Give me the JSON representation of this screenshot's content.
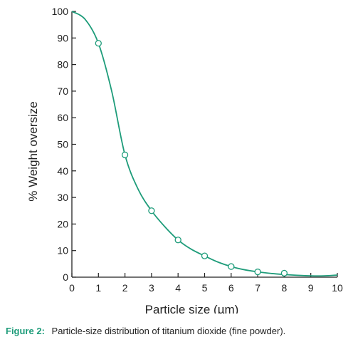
{
  "caption": {
    "label": "Figure 2:",
    "text": "Particle-size distribution of titanium dioxide (fine powder)."
  },
  "colors": {
    "curve": "#1e9c7a",
    "axis": "#222222",
    "caption_label": "#1e9c7a"
  },
  "chart_data": {
    "type": "line",
    "title": "",
    "xlabel": "Particle size (µm)",
    "ylabel": "% Weight oversize",
    "xlim": [
      0,
      10
    ],
    "ylim": [
      0,
      100
    ],
    "x_ticks": [
      "0",
      "1",
      "2",
      "3",
      "4",
      "5",
      "6",
      "7",
      "8",
      "9",
      "10"
    ],
    "y_ticks": [
      "0",
      "10",
      "20",
      "30",
      "40",
      "50",
      "60",
      "70",
      "80",
      "90",
      "100"
    ],
    "grid": false,
    "legend": "none",
    "series": [
      {
        "marker": "open-circle",
        "x": [
          1,
          2,
          3,
          4,
          5,
          6,
          7,
          8
        ],
        "y": [
          88,
          46,
          25,
          14,
          8,
          4,
          2,
          1.5
        ]
      }
    ],
    "curve": {
      "x": [
        0,
        0.5,
        1,
        1.5,
        2,
        2.5,
        3,
        3.5,
        4,
        4.5,
        5,
        5.5,
        6,
        6.5,
        7,
        7.5,
        8,
        8.5,
        9,
        9.5,
        10
      ],
      "y": [
        100,
        97,
        88,
        70,
        46,
        33,
        25,
        19,
        14,
        10.5,
        8,
        5.7,
        4,
        2.8,
        2,
        1.4,
        1,
        0.7,
        0.5,
        0.5,
        0.8
      ]
    }
  }
}
